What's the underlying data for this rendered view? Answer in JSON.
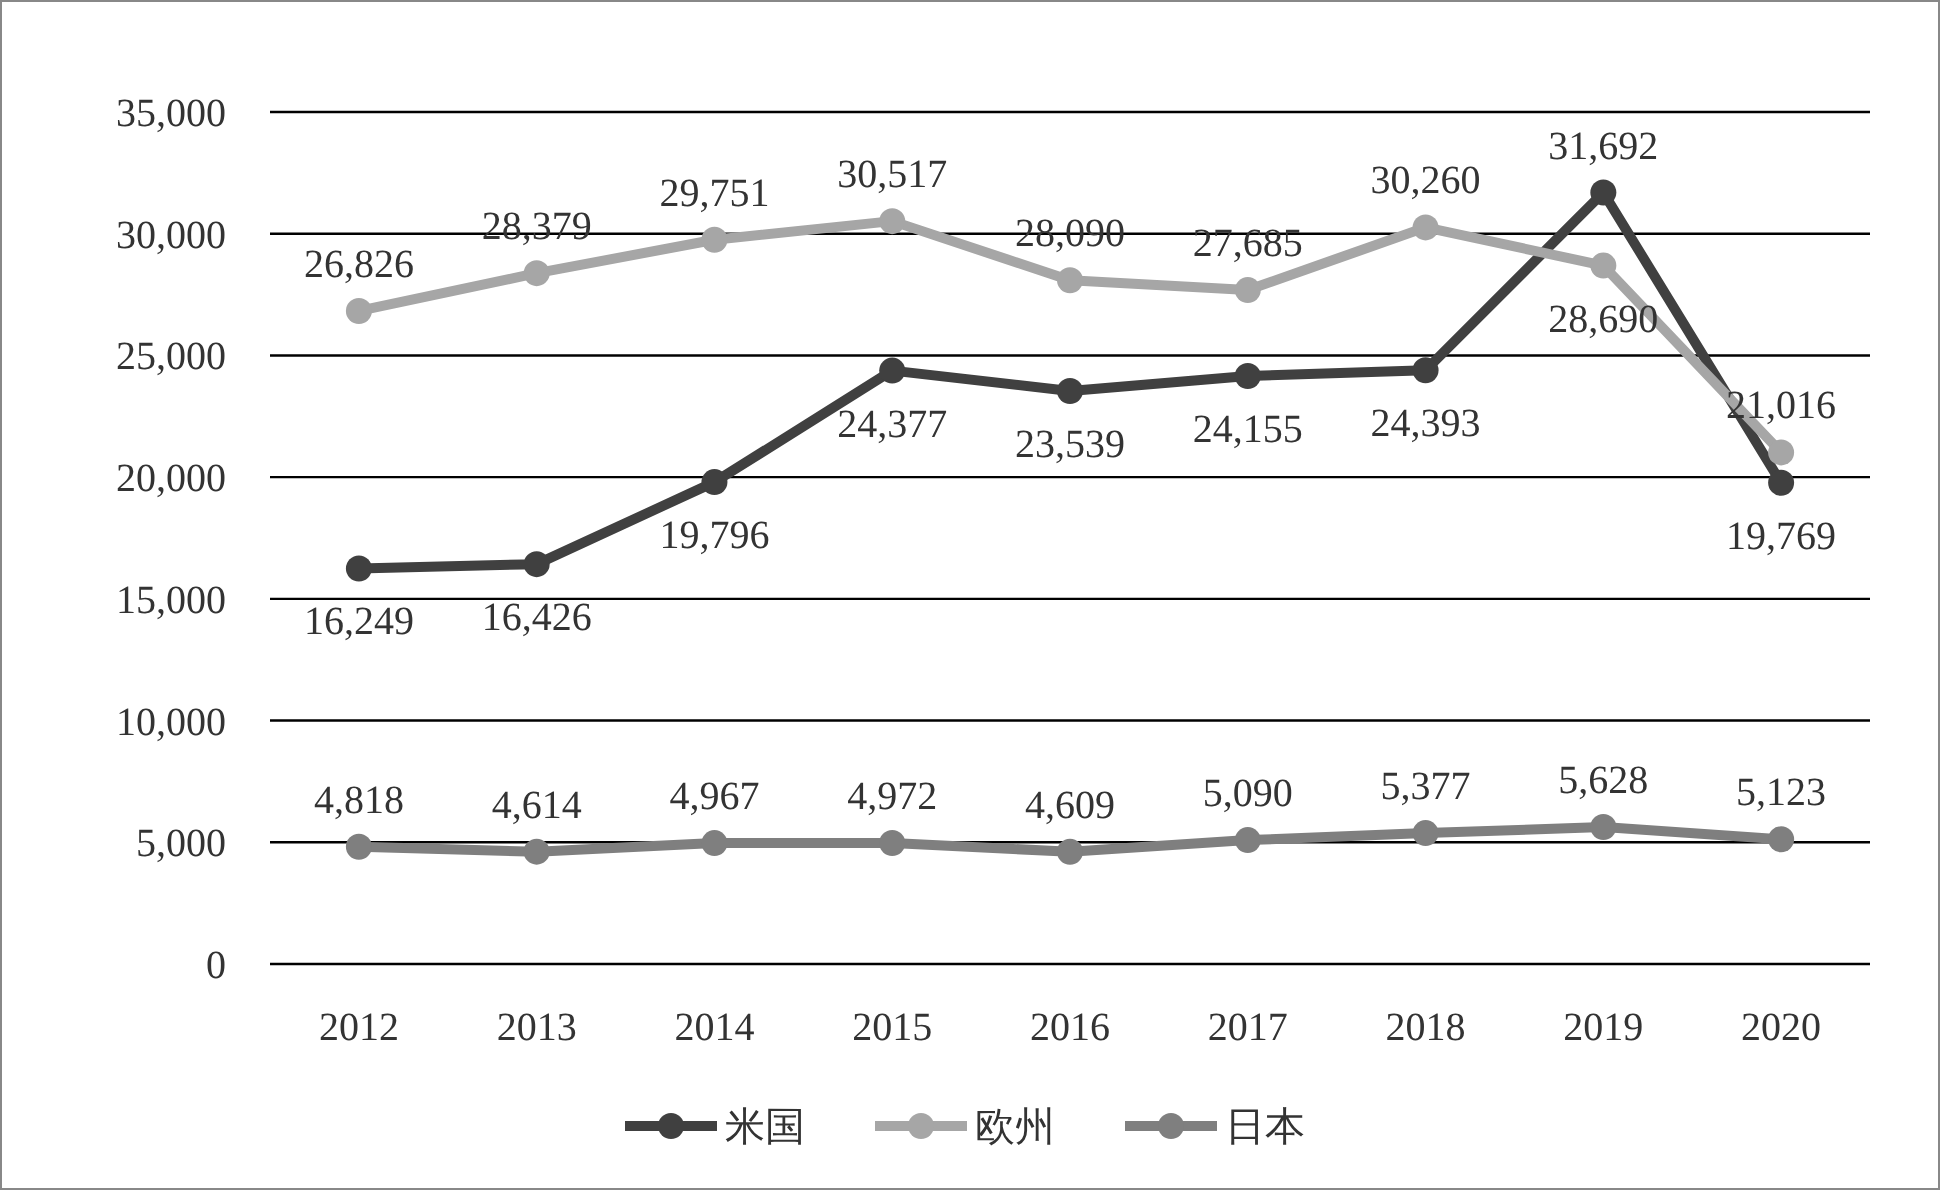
{
  "chart_data": {
    "type": "line",
    "categories": [
      "2012",
      "2013",
      "2014",
      "2015",
      "2016",
      "2017",
      "2018",
      "2019",
      "2020"
    ],
    "series": [
      {
        "name": "米国",
        "color": "#404040",
        "values": [
          16249,
          16426,
          19796,
          24377,
          23539,
          24155,
          24393,
          31692,
          19769
        ],
        "value_labels": [
          "16,249",
          "16,426",
          "19,796",
          "24,377",
          "23,539",
          "24,155",
          "24,393",
          "31,692",
          "19,769"
        ]
      },
      {
        "name": "欧州",
        "color": "#a6a6a6",
        "values": [
          26826,
          28379,
          29751,
          30517,
          28090,
          27685,
          30260,
          28690,
          21016
        ],
        "value_labels": [
          "26,826",
          "28,379",
          "29,751",
          "30,517",
          "28,090",
          "27,685",
          "30,260",
          "28,690",
          "21,016"
        ]
      },
      {
        "name": "日本",
        "color": "#7f7f7f",
        "values": [
          4818,
          4614,
          4967,
          4972,
          4609,
          5090,
          5377,
          5628,
          5123
        ],
        "value_labels": [
          "4,818",
          "4,614",
          "4,967",
          "4,972",
          "4,609",
          "5,090",
          "5,377",
          "5,628",
          "5,123"
        ]
      }
    ],
    "ylim": [
      0,
      35000
    ],
    "yticks": [
      0,
      {
        "value": 5000,
        "label": "5,000"
      },
      {
        "value": 10000,
        "label": "10,000"
      },
      {
        "value": 15000,
        "label": "15,000"
      },
      {
        "value": 20000,
        "label": "20,000"
      },
      {
        "value": 25000,
        "label": "25,000"
      },
      {
        "value": 30000,
        "label": "30,000"
      },
      {
        "value": 35000,
        "label": "35,000"
      }
    ],
    "grid": "y",
    "legend": "bottom",
    "marker": "circle",
    "line_style": "solid"
  }
}
